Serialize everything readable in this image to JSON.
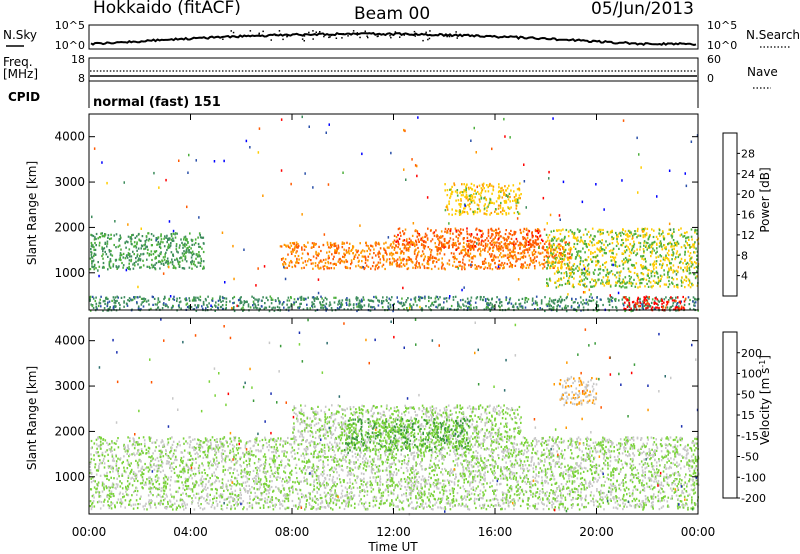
{
  "header": {
    "radar": "Hokkaido (fitACF)",
    "beam": "Beam 00",
    "date": "05/Jun/2013"
  },
  "noise_panel": {
    "left_label": "N.Sky",
    "right_label": "N.Search",
    "left_ticks": [
      "10^5",
      "10^0"
    ],
    "right_ticks": [
      "10^5",
      "10^0"
    ]
  },
  "freq_panel": {
    "left_label_1": "Freq.",
    "left_label_2": "[MHz]",
    "right_label": "Nave",
    "left_ticks": [
      "18",
      "8"
    ],
    "right_ticks": [
      "60",
      "0"
    ]
  },
  "cpid": {
    "label": "CPID",
    "value": "normal (fast) 151"
  },
  "colors": {
    "power_scale": [
      "#0000ff",
      "#2a4fa8",
      "#3d8c5c",
      "#4caf3c",
      "#ffcc00",
      "#ff9900",
      "#ff5a00",
      "#ff0000"
    ],
    "velocity_scale": [
      "#1a2fb0",
      "#2d6e6e",
      "#3a9a3a",
      "#7ad33a",
      "#c8c8c8",
      "#ff9900",
      "#ff5500",
      "#ff0000"
    ]
  },
  "chart_data": [
    {
      "type": "heatmap",
      "name": "power",
      "ylabel": "Slant Range [km]",
      "colorbar_label": "Power [dB]",
      "colorbar_ticks": [
        "28",
        "24",
        "20",
        "16",
        "12",
        "8",
        "4"
      ],
      "colorbar_range": [
        0,
        32
      ],
      "ylim": [
        180,
        4500
      ],
      "yticks": [
        "4000",
        "3000",
        "2000",
        "1000"
      ],
      "ytick_values": [
        4000,
        3000,
        2000,
        1000
      ],
      "xlim": [
        0,
        24
      ],
      "features": [
        {
          "t": [
            0.0,
            24.0
          ],
          "r": [
            180,
            500
          ],
          "value": 10
        },
        {
          "t": [
            0.0,
            4.5
          ],
          "r": [
            1100,
            1900
          ],
          "value": 12
        },
        {
          "t": [
            7.5,
            19.0
          ],
          "r": [
            1100,
            1700
          ],
          "value": 24
        },
        {
          "t": [
            12.0,
            18.0
          ],
          "r": [
            1500,
            2000
          ],
          "value": 26
        },
        {
          "t": [
            14.0,
            17.0
          ],
          "r": [
            2300,
            3000
          ],
          "value": 18
        },
        {
          "t": [
            18.0,
            24.0
          ],
          "r": [
            700,
            2000
          ],
          "value": 16
        },
        {
          "t": [
            21.0,
            23.5
          ],
          "r": [
            200,
            500
          ],
          "value": 30
        }
      ]
    },
    {
      "type": "heatmap",
      "name": "velocity",
      "ylabel": "Slant Range [km]",
      "colorbar_label": "Velocity [m s^-1]",
      "colorbar_ticks": [
        "200",
        "100",
        "50",
        "15",
        "-15",
        "-50",
        "-100",
        "-200"
      ],
      "colorbar_range": [
        -250,
        250
      ],
      "ylim": [
        180,
        4500
      ],
      "yticks": [
        "4000",
        "3000",
        "2000",
        "1000"
      ],
      "ytick_values": [
        4000,
        3000,
        2000,
        1000
      ],
      "xlim": [
        0,
        24
      ],
      "features": [
        {
          "t": [
            0.0,
            24.0
          ],
          "r": [
            300,
            1900
          ],
          "value": 0
        },
        {
          "t": [
            8.0,
            17.0
          ],
          "r": [
            1900,
            2600
          ],
          "value": 0
        },
        {
          "t": [
            10.0,
            15.0
          ],
          "r": [
            1600,
            2300
          ],
          "value": -60
        },
        {
          "t": [
            18.5,
            20.0
          ],
          "r": [
            2600,
            3200
          ],
          "value": 60
        }
      ]
    }
  ],
  "xaxis": {
    "label": "Time UT",
    "ticks": [
      "00:00",
      "04:00",
      "08:00",
      "12:00",
      "16:00",
      "20:00",
      "00:00"
    ],
    "tick_values": [
      0,
      4,
      8,
      12,
      16,
      20,
      24
    ]
  }
}
